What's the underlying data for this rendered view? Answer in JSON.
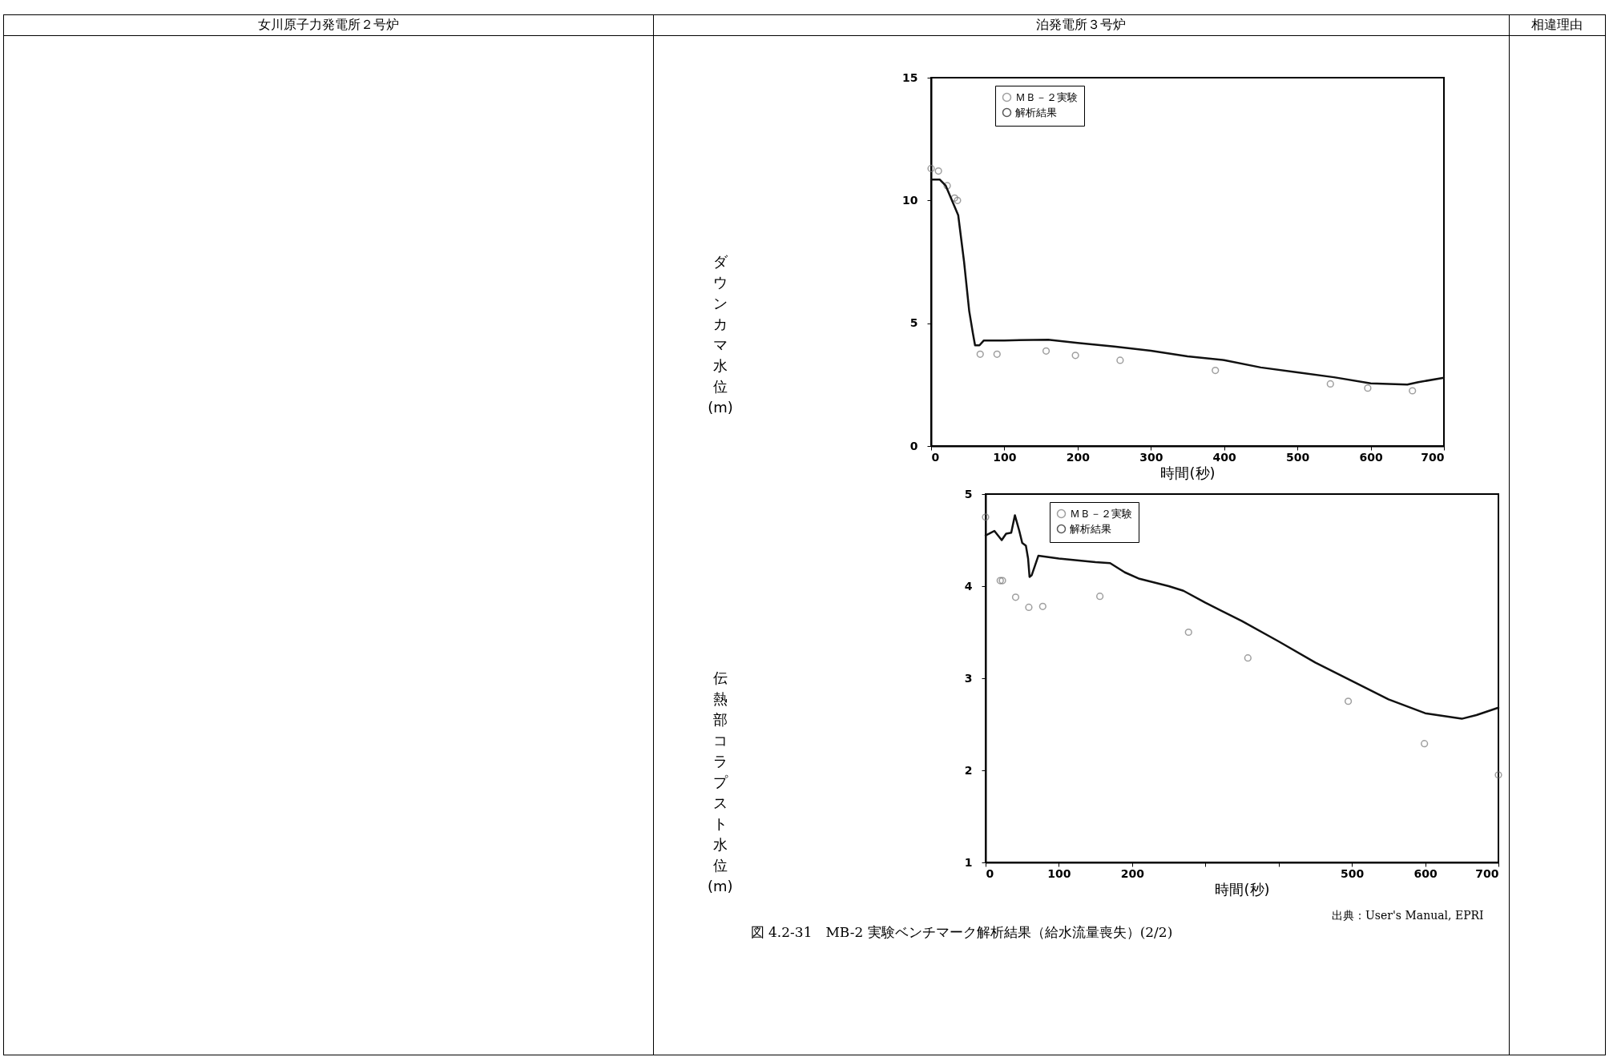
{
  "chart_data": [
    {
      "type": "line",
      "ylabel": "ダウンカマ水位(m)",
      "xlabel": "時間(秒)",
      "xlim": [
        0,
        700
      ],
      "ylim": [
        0,
        15
      ],
      "xticks": [
        0,
        100,
        200,
        300,
        400,
        500,
        600,
        700
      ],
      "yticks": [
        0,
        5,
        10,
        15
      ],
      "grid": false,
      "legend": "top left",
      "annotations": [
        "女川原子力発電所２号炉",
        "泊発電所３号炉",
        "相違理由"
      ],
      "series": [
        {
          "name": "ＭＢ－２実験",
          "type": "scatter",
          "marker": "circle",
          "color": "#777777",
          "x": [
            0,
            10,
            22,
            32,
            36,
            67,
            90,
            157,
            197,
            258,
            388,
            545,
            596,
            657
          ],
          "values": [
            11.3,
            11.2,
            10.6,
            10.1,
            10.0,
            3.74,
            3.74,
            3.87,
            3.69,
            3.49,
            3.08,
            2.53,
            2.36,
            2.25
          ]
        },
        {
          "name": "解析結果",
          "type": "line",
          "marker": "none",
          "line_style": "solid",
          "color": "#111111",
          "x": [
            0,
            12,
            20,
            37,
            45,
            52,
            57,
            60,
            66,
            72,
            100,
            160,
            200,
            250,
            300,
            350,
            400,
            450,
            500,
            550,
            600,
            650,
            665,
            700
          ],
          "values": [
            10.85,
            10.85,
            10.6,
            9.4,
            7.5,
            5.5,
            4.6,
            4.1,
            4.1,
            4.3,
            4.3,
            4.33,
            4.2,
            4.05,
            3.88,
            3.65,
            3.5,
            3.2,
            3.0,
            2.8,
            2.55,
            2.5,
            2.6,
            2.78
          ]
        }
      ]
    },
    {
      "type": "line",
      "ylabel": "伝熱部コラプスト水位(m)",
      "xlabel": "時間(秒)",
      "xlim": [
        0,
        700
      ],
      "ylim": [
        1,
        5
      ],
      "xticks": [
        0,
        100,
        200,
        {
          "value": 300,
          "label": null
        },
        {
          "value": 400,
          "label": null
        },
        500,
        600,
        700
      ],
      "yticks": [
        1,
        2,
        3,
        4,
        5
      ],
      "grid": false,
      "legend": "top left",
      "annotations": [
        "出典：User's Manual, EPRI",
        "図 4.2-31　MB-2 実験ベンチマーク解析結果（給水流量喪失）(2/2)"
      ],
      "series": [
        {
          "name": "ＭＢ－２実験",
          "type": "scatter",
          "marker": "circle",
          "color": "#777777",
          "x": [
            0,
            20,
            23,
            41,
            59,
            78,
            156,
            277,
            358,
            495,
            599,
            700
          ],
          "values": [
            4.75,
            4.06,
            4.06,
            3.88,
            3.77,
            3.78,
            3.89,
            3.5,
            3.22,
            2.75,
            2.29,
            1.95
          ]
        },
        {
          "name": "解析結果",
          "type": "line",
          "marker": "none",
          "line_style": "solid",
          "color": "#111111",
          "x": [
            0,
            5,
            12,
            22,
            28,
            35,
            40,
            46,
            50,
            55,
            58,
            60,
            63,
            72,
            100,
            150,
            170,
            190,
            210,
            250,
            270,
            300,
            350,
            400,
            450,
            500,
            550,
            600,
            650,
            670,
            700
          ],
          "values": [
            4.55,
            4.57,
            4.6,
            4.5,
            4.57,
            4.58,
            4.77,
            4.6,
            4.47,
            4.44,
            4.3,
            4.1,
            4.12,
            4.33,
            4.3,
            4.26,
            4.25,
            4.15,
            4.08,
            4.0,
            3.95,
            3.82,
            3.62,
            3.4,
            3.17,
            2.97,
            2.77,
            2.62,
            2.56,
            2.6,
            2.68
          ]
        }
      ]
    }
  ]
}
